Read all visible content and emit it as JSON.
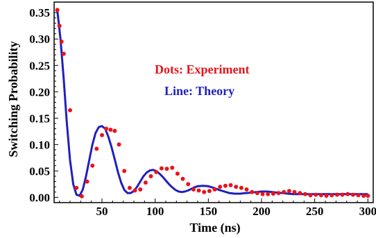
{
  "chart_data": {
    "type": "scatter",
    "title": "",
    "xlabel": "Time (ns)",
    "ylabel": "Switching Probability",
    "xlim": [
      5,
      305
    ],
    "ylim": [
      -0.01,
      0.37
    ],
    "grid": false,
    "x_ticks": [
      50,
      100,
      150,
      200,
      250,
      300
    ],
    "x_tick_labels": [
      "50",
      "100",
      "150",
      "200",
      "250",
      "300"
    ],
    "y_ticks": [
      0,
      0.05,
      0.1,
      0.15,
      0.2,
      0.25,
      0.3,
      0.35
    ],
    "y_tick_labels": [
      "0.00",
      "0.05",
      "0.10",
      "0.15",
      "0.20",
      "0.25",
      "0.30",
      "0.35"
    ],
    "annotations": [
      {
        "text": "Dots: Experiment",
        "color": "#e8141a"
      },
      {
        "text": "Line: Theory",
        "color": "#1f1fbf"
      }
    ],
    "series": [
      {
        "kind": "points",
        "color": "#e8141a",
        "x": [
          8,
          10,
          12,
          14,
          20,
          26,
          31,
          36,
          41,
          45,
          50,
          54,
          58,
          62,
          66,
          71,
          76,
          81,
          86,
          91,
          96,
          101,
          106,
          111,
          116,
          121,
          126,
          131,
          136,
          141,
          146,
          151,
          156,
          161,
          166,
          171,
          176,
          181,
          186,
          191,
          196,
          201,
          206,
          211,
          216,
          221,
          226,
          231,
          236,
          241,
          246,
          251,
          256,
          261,
          266,
          271,
          276,
          281,
          286,
          291,
          296,
          300
        ],
        "y": [
          0.355,
          0.325,
          0.295,
          0.272,
          0.165,
          0.018,
          0.002,
          0.03,
          0.06,
          0.092,
          0.118,
          0.13,
          0.128,
          0.126,
          0.1,
          0.05,
          0.018,
          0.013,
          0.015,
          0.028,
          0.04,
          0.048,
          0.055,
          0.054,
          0.056,
          0.045,
          0.035,
          0.025,
          0.015,
          0.013,
          0.01,
          0.012,
          0.015,
          0.02,
          0.022,
          0.023,
          0.02,
          0.018,
          0.015,
          0.01,
          0.008,
          0.006,
          0.006,
          0.007,
          0.008,
          0.01,
          0.012,
          0.01,
          0.008,
          0.006,
          0.004,
          0.005,
          0.004,
          0.003,
          0.004,
          0.005,
          0.005,
          0.006,
          0.005,
          0.004,
          0.003,
          0.003
        ]
      },
      {
        "kind": "line",
        "color": "#1f1fbf",
        "x": [
          8,
          11,
          14,
          17,
          20,
          23,
          26,
          29,
          32,
          35,
          38,
          41,
          44,
          47,
          50,
          53,
          56,
          59,
          62,
          65,
          68,
          71,
          74,
          77,
          80,
          83,
          86,
          89,
          92,
          95,
          98,
          101,
          104,
          107,
          110,
          113,
          116,
          119,
          122,
          125,
          128,
          131,
          134,
          137,
          140,
          145,
          150,
          155,
          160,
          165,
          170,
          175,
          180,
          185,
          190,
          195,
          200,
          205,
          210,
          215,
          220,
          225,
          230,
          235,
          240,
          245,
          250,
          255,
          260,
          265,
          270,
          275,
          280,
          285,
          290,
          295,
          300
        ],
        "y": [
          0.355,
          0.3,
          0.225,
          0.14,
          0.07,
          0.025,
          0.005,
          0.003,
          0.015,
          0.04,
          0.07,
          0.1,
          0.122,
          0.133,
          0.135,
          0.13,
          0.115,
          0.095,
          0.072,
          0.048,
          0.028,
          0.014,
          0.008,
          0.008,
          0.012,
          0.02,
          0.03,
          0.04,
          0.047,
          0.051,
          0.052,
          0.05,
          0.045,
          0.039,
          0.032,
          0.025,
          0.019,
          0.014,
          0.011,
          0.01,
          0.011,
          0.013,
          0.016,
          0.019,
          0.021,
          0.022,
          0.021,
          0.018,
          0.014,
          0.011,
          0.008,
          0.007,
          0.007,
          0.008,
          0.009,
          0.01,
          0.011,
          0.011,
          0.01,
          0.009,
          0.008,
          0.007,
          0.006,
          0.006,
          0.006,
          0.006,
          0.006,
          0.006,
          0.006,
          0.006,
          0.006,
          0.006,
          0.006,
          0.006,
          0.006,
          0.006,
          0.006
        ]
      }
    ]
  }
}
